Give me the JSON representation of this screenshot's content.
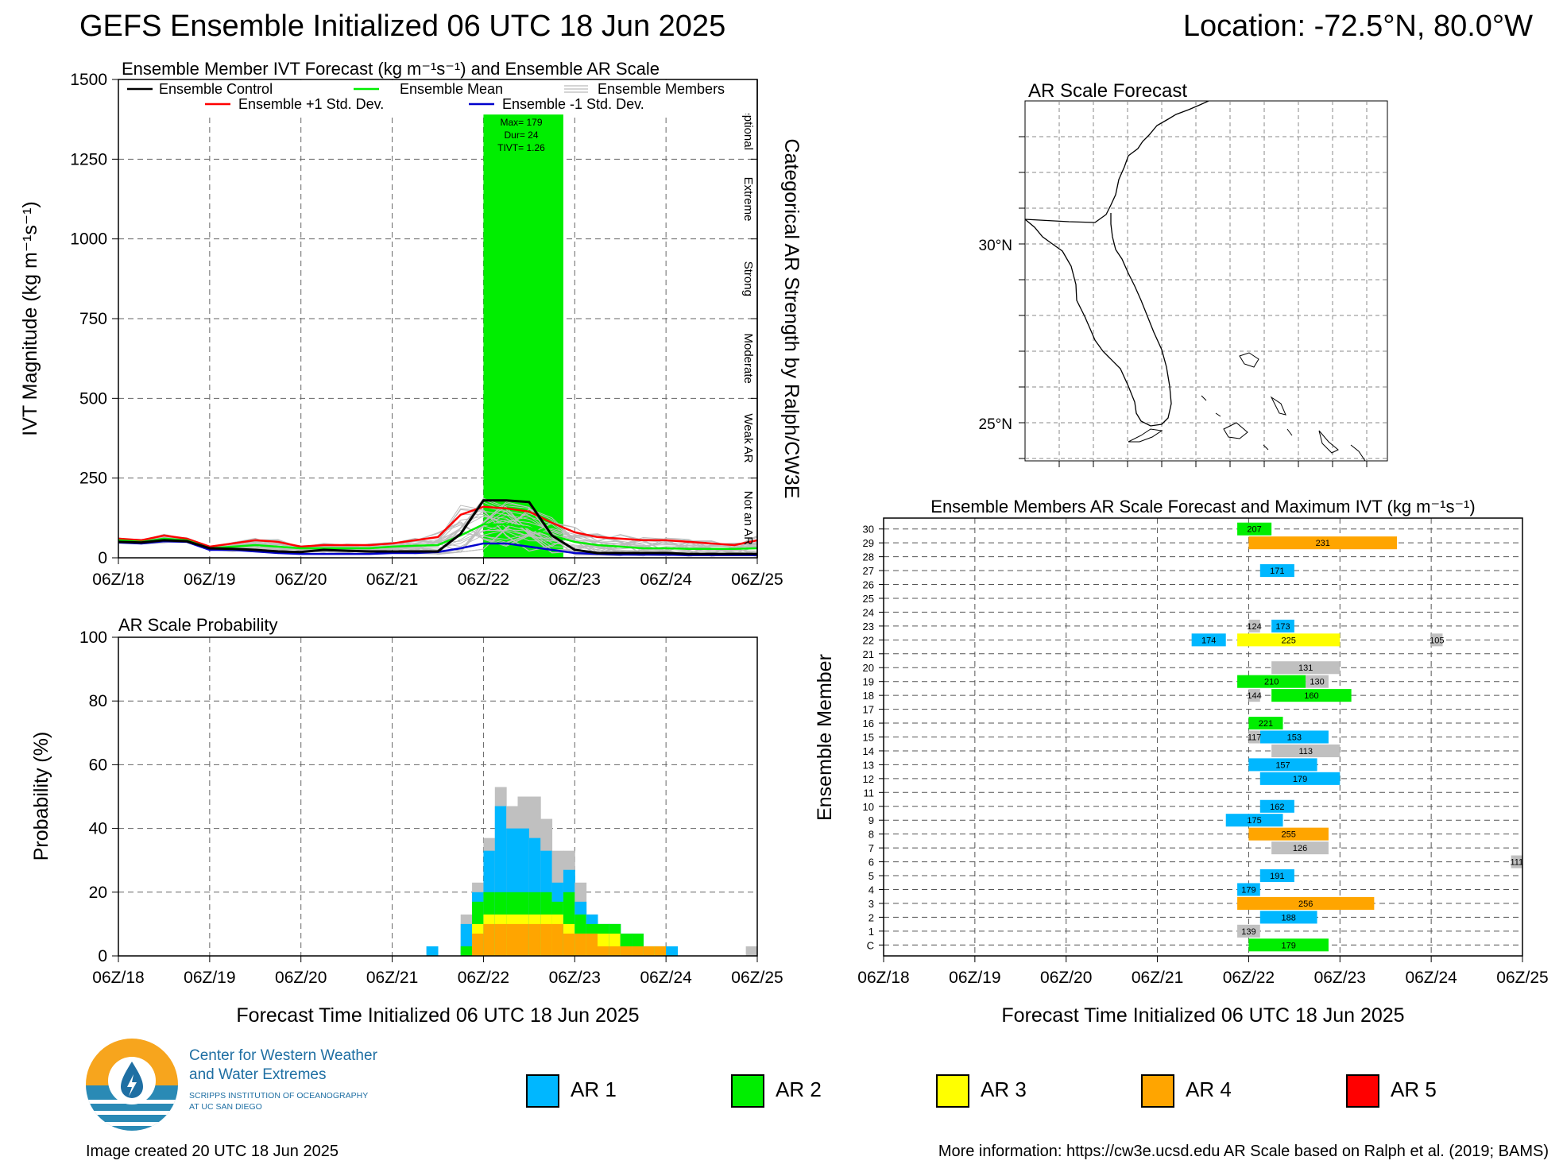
{
  "header": {
    "title": "GEFS Ensemble Initialized 06 UTC 18 Jun 2025",
    "location": "Location: -72.5°N, 80.0°W"
  },
  "colors": {
    "ar1": "#00b7ff",
    "ar2": "#00ee00",
    "ar3": "#ffff00",
    "ar4": "#ffa500",
    "ar5": "#ff0000",
    "not_ar": "#c0c0c0",
    "control": "#000000",
    "mean": "#00ee00",
    "plus_sd": "#ff0000",
    "minus_sd": "#0000cc"
  },
  "time_ticks": [
    "06Z/18",
    "06Z/19",
    "06Z/20",
    "06Z/21",
    "06Z/22",
    "06Z/23",
    "06Z/24",
    "06Z/25"
  ],
  "ivt_panel": {
    "title": "Ensemble Member IVT Forecast (kg m⁻¹s⁻¹) and Ensemble AR Scale",
    "ylabel": "IVT Magnitude (kg m⁻¹s⁻¹)",
    "right_label": "Categorical AR Strength by Ralph/CW3E",
    "yticks": [
      "0",
      "250",
      "500",
      "750",
      "1000",
      "1250",
      "1500"
    ],
    "categories": [
      "Not an AR",
      "Weak AR",
      "Moderate",
      "Strong",
      "Extreme",
      "Exceptional"
    ],
    "legend": {
      "control": "Ensemble Control",
      "mean": "Ensemble Mean",
      "members": "Ensemble Members",
      "plus_sd": "Ensemble +1 Std. Dev.",
      "minus_sd": "Ensemble -1 Std. Dev."
    },
    "ar_event": {
      "max": "Max= 179",
      "dur": "Dur= 24",
      "tivt": "TIVT= 1.26"
    }
  },
  "map_panel": {
    "title": "AR Scale Forecast",
    "lat_labels": [
      "30°N",
      "25°N"
    ]
  },
  "prob_panel": {
    "title": "AR Scale Probability",
    "ylabel": "Probability (%)",
    "xlabel": "Forecast Time Initialized 06 UTC 18 Jun 2025",
    "yticks": [
      "0",
      "20",
      "40",
      "60",
      "80",
      "100"
    ]
  },
  "members_panel": {
    "title": "Ensemble Members AR Scale Forecast and Maximum IVT (kg m⁻¹s⁻¹)",
    "ylabel": "Ensemble Member",
    "xlabel": "Forecast Time Initialized 06 UTC 18 Jun 2025",
    "member_labels": [
      "C",
      "1",
      "2",
      "3",
      "4",
      "5",
      "6",
      "7",
      "8",
      "9",
      "10",
      "11",
      "12",
      "13",
      "14",
      "15",
      "16",
      "17",
      "18",
      "19",
      "20",
      "21",
      "22",
      "23",
      "24",
      "25",
      "26",
      "27",
      "28",
      "29",
      "30"
    ]
  },
  "legend_items": [
    "AR 1",
    "AR 2",
    "AR 3",
    "AR 4",
    "AR 5"
  ],
  "logo": {
    "line1": "Center for Western Weather",
    "line2": "and Water Extremes",
    "line3": "SCRIPPS INSTITUTION OF OCEANOGRAPHY",
    "line4": "AT UC SAN DIEGO"
  },
  "footer": {
    "created": "Image created 20 UTC 18 Jun 2025",
    "more_info": "More information: https://cw3e.ucsd.edu AR Scale based on Ralph et al. (2019; BAMS)"
  },
  "chart_data": [
    {
      "type": "line",
      "title": "Ensemble Member IVT Forecast (kg m⁻¹s⁻¹) and Ensemble AR Scale",
      "xlabel": "",
      "ylabel": "IVT Magnitude (kg m⁻¹s⁻¹)",
      "x_hours": [
        0,
        6,
        12,
        18,
        24,
        30,
        36,
        42,
        48,
        54,
        60,
        66,
        72,
        78,
        84,
        90,
        96,
        102,
        108,
        114,
        120,
        126,
        132,
        138,
        144,
        150,
        156,
        162,
        168
      ],
      "ylim": [
        0,
        1500
      ],
      "series": [
        {
          "name": "Ensemble Control",
          "values": [
            50,
            48,
            55,
            52,
            30,
            28,
            25,
            20,
            18,
            25,
            22,
            20,
            20,
            20,
            20,
            75,
            180,
            180,
            175,
            70,
            25,
            15,
            15,
            15,
            15,
            12,
            12,
            12,
            12
          ]
        },
        {
          "name": "Ensemble Mean",
          "values": [
            55,
            50,
            60,
            55,
            30,
            35,
            40,
            35,
            30,
            30,
            30,
            30,
            35,
            38,
            40,
            70,
            105,
            105,
            95,
            70,
            50,
            40,
            35,
            30,
            30,
            28,
            28,
            28,
            30
          ]
        },
        {
          "name": "Ensemble +1 Std. Dev.",
          "values": [
            60,
            55,
            70,
            60,
            35,
            45,
            55,
            50,
            35,
            40,
            40,
            40,
            45,
            55,
            65,
            135,
            160,
            155,
            145,
            110,
            80,
            65,
            60,
            55,
            55,
            50,
            45,
            40,
            55
          ]
        },
        {
          "name": "Ensemble -1 Std. Dev.",
          "values": [
            48,
            45,
            52,
            50,
            25,
            25,
            20,
            15,
            12,
            12,
            12,
            12,
            15,
            15,
            18,
            30,
            45,
            45,
            35,
            25,
            15,
            12,
            10,
            10,
            10,
            8,
            8,
            8,
            8
          ]
        }
      ],
      "ar_scale_bands": [
        {
          "start_hour": 96,
          "end_hour": 117,
          "category": "AR 2",
          "height_ivt": 1390
        }
      ],
      "categories_right": [
        "Not an AR",
        "Weak AR",
        "Moderate",
        "Strong",
        "Extreme",
        "Exceptional"
      ]
    },
    {
      "type": "area",
      "title": "AR Scale Probability",
      "xlabel": "Forecast Time Initialized 06 UTC 18 Jun 2025",
      "ylabel": "Probability (%)",
      "ylim": [
        0,
        100
      ],
      "x_hours_start": [
        81,
        90,
        93,
        96,
        99,
        102,
        105,
        108,
        111,
        114,
        117,
        120,
        123,
        126,
        129,
        132,
        135,
        138,
        141,
        144,
        147,
        150,
        153,
        156,
        159,
        162,
        165
      ],
      "not_ar_total": [
        3,
        13,
        23,
        37,
        53,
        47,
        50,
        50,
        43,
        33,
        33,
        23,
        13,
        10,
        10,
        7,
        7,
        3,
        3,
        3,
        0,
        0,
        0,
        0,
        0,
        0,
        3
      ],
      "ar1_total": [
        3,
        10,
        20,
        33,
        47,
        40,
        40,
        37,
        33,
        23,
        27,
        17,
        13,
        10,
        10,
        7,
        7,
        3,
        3,
        3,
        0,
        0,
        0,
        0,
        0,
        0,
        0
      ],
      "ar2_total": [
        0,
        3,
        17,
        20,
        20,
        20,
        20,
        20,
        20,
        17,
        20,
        13,
        10,
        10,
        10,
        7,
        7,
        3,
        3,
        0,
        0,
        0,
        0,
        0,
        0,
        0,
        0
      ],
      "ar3_total": [
        0,
        0,
        10,
        13,
        13,
        13,
        13,
        13,
        13,
        13,
        10,
        7,
        7,
        7,
        7,
        3,
        3,
        3,
        3,
        0,
        0,
        0,
        0,
        0,
        0,
        0,
        0
      ],
      "ar4_total": [
        0,
        0,
        7,
        10,
        10,
        10,
        10,
        10,
        10,
        10,
        7,
        7,
        7,
        3,
        3,
        3,
        3,
        3,
        3,
        0,
        0,
        0,
        0,
        0,
        0,
        0,
        0
      ]
    },
    {
      "type": "bar",
      "title": "Ensemble Members AR Scale Forecast and Maximum IVT (kg m⁻¹s⁻¹)",
      "xlabel": "Forecast Time Initialized 06 UTC 18 Jun 2025",
      "ylabel": "Ensemble Member",
      "segments": [
        {
          "member": "30",
          "start": 93,
          "end": 102,
          "cat": "AR 2",
          "label": "207"
        },
        {
          "member": "29",
          "start": 96,
          "end": 135,
          "cat": "AR 4",
          "label": "231"
        },
        {
          "member": "27",
          "start": 99,
          "end": 108,
          "cat": "AR 1",
          "label": "171"
        },
        {
          "member": "23",
          "start": 102,
          "end": 108,
          "cat": "AR 1",
          "label": "173"
        },
        {
          "member": "23",
          "start": 96,
          "end": 99,
          "cat": "Not AR",
          "label": "124"
        },
        {
          "member": "22",
          "start": 81,
          "end": 90,
          "cat": "AR 1",
          "label": "174"
        },
        {
          "member": "22",
          "start": 93,
          "end": 120,
          "cat": "AR 3",
          "label": "225"
        },
        {
          "member": "22",
          "start": 144,
          "end": 147,
          "cat": "Not AR",
          "label": "105"
        },
        {
          "member": "20",
          "start": 102,
          "end": 120,
          "cat": "Not AR",
          "label": "131"
        },
        {
          "member": "19",
          "start": 93,
          "end": 111,
          "cat": "AR 2",
          "label": "210"
        },
        {
          "member": "19",
          "start": 111,
          "end": 117,
          "cat": "Not AR",
          "label": "130"
        },
        {
          "member": "18",
          "start": 102,
          "end": 123,
          "cat": "AR 2",
          "label": "160"
        },
        {
          "member": "18",
          "start": 96,
          "end": 99,
          "cat": "Not AR",
          "label": "144"
        },
        {
          "member": "16",
          "start": 96,
          "end": 105,
          "cat": "AR 2",
          "label": "221"
        },
        {
          "member": "15",
          "start": 99,
          "end": 117,
          "cat": "AR 1",
          "label": "153"
        },
        {
          "member": "15",
          "start": 96,
          "end": 99,
          "cat": "Not AR",
          "label": "117"
        },
        {
          "member": "14",
          "start": 102,
          "end": 120,
          "cat": "Not AR",
          "label": "113"
        },
        {
          "member": "13",
          "start": 96,
          "end": 114,
          "cat": "AR 1",
          "label": "157"
        },
        {
          "member": "12",
          "start": 99,
          "end": 120,
          "cat": "AR 1",
          "label": "179"
        },
        {
          "member": "10",
          "start": 99,
          "end": 108,
          "cat": "AR 1",
          "label": "162"
        },
        {
          "member": "9",
          "start": 90,
          "end": 105,
          "cat": "AR 1",
          "label": "175"
        },
        {
          "member": "8",
          "start": 96,
          "end": 117,
          "cat": "AR 4",
          "label": "255"
        },
        {
          "member": "7",
          "start": 102,
          "end": 117,
          "cat": "Not AR",
          "label": "126"
        },
        {
          "member": "6",
          "start": 165,
          "end": 168,
          "cat": "Not AR",
          "label": "111"
        },
        {
          "member": "5",
          "start": 99,
          "end": 108,
          "cat": "AR 1",
          "label": "191"
        },
        {
          "member": "4",
          "start": 93,
          "end": 99,
          "cat": "AR 1",
          "label": "179"
        },
        {
          "member": "3",
          "start": 93,
          "end": 129,
          "cat": "AR 4",
          "label": "256"
        },
        {
          "member": "2",
          "start": 99,
          "end": 114,
          "cat": "AR 1",
          "label": "188"
        },
        {
          "member": "1",
          "start": 93,
          "end": 99,
          "cat": "Not AR",
          "label": "139"
        },
        {
          "member": "C",
          "start": 96,
          "end": 117,
          "cat": "AR 2",
          "label": "179"
        }
      ]
    }
  ]
}
